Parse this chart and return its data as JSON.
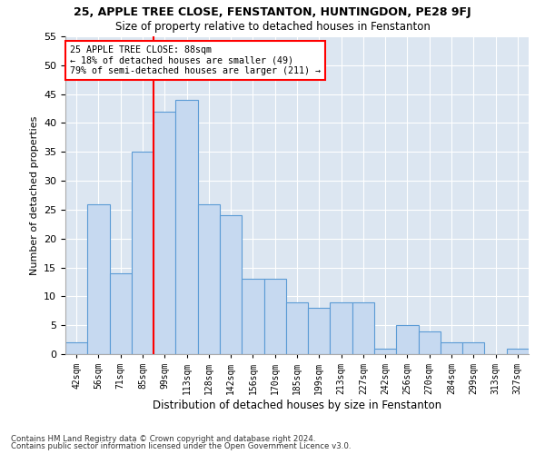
{
  "title": "25, APPLE TREE CLOSE, FENSTANTON, HUNTINGDON, PE28 9FJ",
  "subtitle": "Size of property relative to detached houses in Fenstanton",
  "xlabel": "Distribution of detached houses by size in Fenstanton",
  "ylabel": "Number of detached properties",
  "bar_values": [
    2,
    26,
    14,
    35,
    42,
    44,
    26,
    24,
    13,
    13,
    9,
    8,
    9,
    9,
    1,
    5,
    4,
    2,
    2,
    0,
    1
  ],
  "bin_labels": [
    "42sqm",
    "56sqm",
    "71sqm",
    "85sqm",
    "99sqm",
    "113sqm",
    "128sqm",
    "142sqm",
    "156sqm",
    "170sqm",
    "185sqm",
    "199sqm",
    "213sqm",
    "227sqm",
    "242sqm",
    "256sqm",
    "270sqm",
    "284sqm",
    "299sqm",
    "313sqm",
    "327sqm"
  ],
  "bar_color": "#c6d9f0",
  "bar_edge_color": "#5b9bd5",
  "property_line_x": 3.5,
  "annotation_line1": "25 APPLE TREE CLOSE: 88sqm",
  "annotation_line2": "← 18% of detached houses are smaller (49)",
  "annotation_line3": "79% of semi-detached houses are larger (211) →",
  "annotation_box_color": "white",
  "annotation_box_edge": "red",
  "red_line_color": "red",
  "ylim": [
    0,
    55
  ],
  "yticks": [
    0,
    5,
    10,
    15,
    20,
    25,
    30,
    35,
    40,
    45,
    50,
    55
  ],
  "background_color": "#dce6f1",
  "footer_line1": "Contains HM Land Registry data © Crown copyright and database right 2024.",
  "footer_line2": "Contains public sector information licensed under the Open Government Licence v3.0."
}
